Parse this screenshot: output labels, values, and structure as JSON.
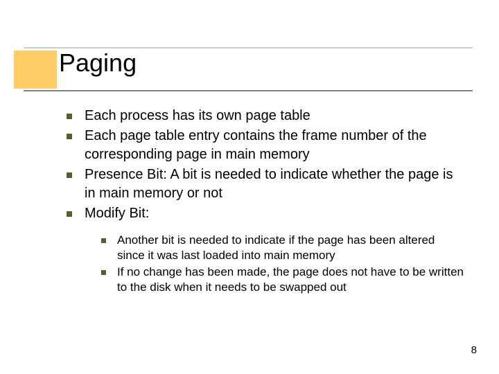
{
  "title": "Paging",
  "accent_color": "#ffcc66",
  "bullet_color": "#4f6228",
  "bullets": [
    {
      "text": "Each process has its own page table"
    },
    {
      "text": "Each page table entry contains the frame number of the corresponding page in main memory"
    },
    {
      "text": "Presence Bit: A bit is needed to indicate whether the page is in main memory or not"
    },
    {
      "text": "Modify Bit:"
    }
  ],
  "sub_bullets": [
    {
      "text": "Another bit is needed to indicate if the page has been altered since it was last loaded into main memory"
    },
    {
      "text": "If no change has been made, the page does not have to be written to the disk when it needs to be swapped out"
    }
  ],
  "page_number": "8"
}
